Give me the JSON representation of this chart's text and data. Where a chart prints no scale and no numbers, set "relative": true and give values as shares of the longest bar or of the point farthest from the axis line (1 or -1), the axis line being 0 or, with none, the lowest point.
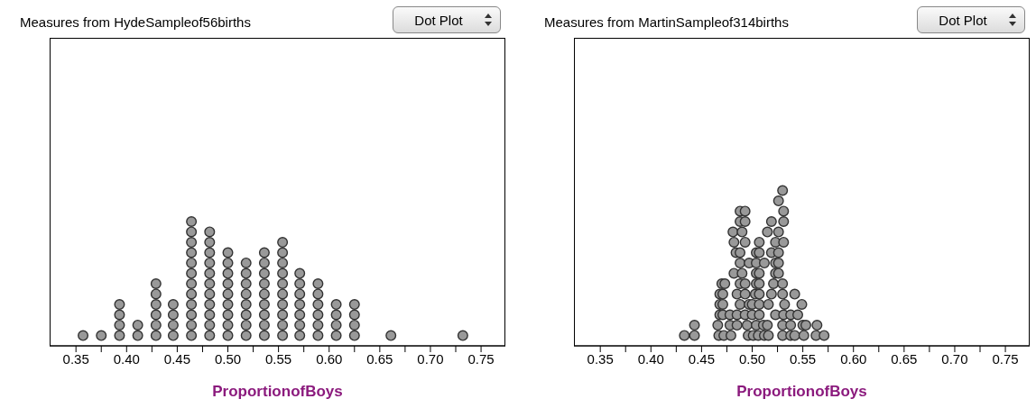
{
  "chart_data": [
    {
      "type": "scatter",
      "title": "Measures from HydeSampleof56births",
      "xlabel": "ProportionofBoys",
      "annotations": [
        "Dot Plot"
      ],
      "relative": true,
      "marker": "circle",
      "color": "#999999",
      "xlim": [
        0.324,
        0.774
      ],
      "xticks": [
        0.35,
        {
          "value": 0.375,
          "label": null
        },
        "0.40",
        {
          "value": 0.425,
          "label": null
        },
        0.45,
        {
          "value": 0.475,
          "label": null
        },
        "0.50",
        {
          "value": 0.525,
          "label": null
        },
        0.55,
        {
          "value": 0.575,
          "label": null
        },
        "0.60",
        {
          "value": 0.625,
          "label": null
        },
        0.65,
        {
          "value": 0.675,
          "label": null
        },
        "0.70",
        {
          "value": 0.725,
          "label": null
        },
        0.75
      ],
      "x": [
        0.357,
        0.375,
        0.393,
        0.393,
        0.393,
        0.393,
        0.411,
        0.411,
        0.429,
        0.429,
        0.429,
        0.429,
        0.429,
        0.429,
        0.446,
        0.446,
        0.446,
        0.446,
        0.464,
        0.464,
        0.464,
        0.464,
        0.464,
        0.464,
        0.464,
        0.464,
        0.464,
        0.464,
        0.464,
        0.464,
        0.482,
        0.482,
        0.482,
        0.482,
        0.482,
        0.482,
        0.482,
        0.482,
        0.482,
        0.482,
        0.482,
        0.5,
        0.5,
        0.5,
        0.5,
        0.5,
        0.5,
        0.5,
        0.5,
        0.5,
        0.518,
        0.518,
        0.518,
        0.518,
        0.518,
        0.518,
        0.518,
        0.518,
        0.536,
        0.536,
        0.536,
        0.536,
        0.536,
        0.536,
        0.536,
        0.536,
        0.536,
        0.554,
        0.554,
        0.554,
        0.554,
        0.554,
        0.554,
        0.554,
        0.554,
        0.554,
        0.554,
        0.571,
        0.571,
        0.571,
        0.571,
        0.571,
        0.571,
        0.571,
        0.589,
        0.589,
        0.589,
        0.589,
        0.589,
        0.589,
        0.607,
        0.607,
        0.607,
        0.607,
        0.625,
        0.625,
        0.625,
        0.625,
        0.661,
        0.732
      ],
      "values": [
        0.083,
        0.083,
        0.083,
        0.167,
        0.25,
        0.333,
        0.083,
        0.167,
        0.083,
        0.167,
        0.25,
        0.333,
        0.417,
        0.5,
        0.083,
        0.167,
        0.25,
        0.333,
        0.083,
        0.167,
        0.25,
        0.333,
        0.417,
        0.5,
        0.583,
        0.667,
        0.75,
        0.833,
        0.917,
        1,
        0.083,
        0.167,
        0.25,
        0.333,
        0.417,
        0.5,
        0.583,
        0.667,
        0.75,
        0.833,
        0.917,
        0.083,
        0.167,
        0.25,
        0.333,
        0.417,
        0.5,
        0.583,
        0.667,
        0.75,
        0.083,
        0.167,
        0.25,
        0.333,
        0.417,
        0.5,
        0.583,
        0.667,
        0.083,
        0.167,
        0.25,
        0.333,
        0.417,
        0.5,
        0.583,
        0.667,
        0.75,
        0.083,
        0.167,
        0.25,
        0.333,
        0.417,
        0.5,
        0.583,
        0.667,
        0.75,
        0.833,
        0.083,
        0.167,
        0.25,
        0.333,
        0.417,
        0.5,
        0.583,
        0.083,
        0.167,
        0.25,
        0.333,
        0.417,
        0.5,
        0.083,
        0.167,
        0.25,
        0.333,
        0.083,
        0.167,
        0.25,
        0.333,
        0.083,
        0.083
      ]
    },
    {
      "type": "scatter",
      "title": "Measures from MartinSampleof314births",
      "xlabel": "ProportionofBoys",
      "annotations": [
        "Dot Plot"
      ],
      "relative": true,
      "marker": "circle",
      "color": "#999999",
      "xlim": [
        0.324,
        0.774
      ],
      "xticks": [
        0.35,
        {
          "value": 0.375,
          "label": null
        },
        "0.40",
        {
          "value": 0.425,
          "label": null
        },
        0.45,
        {
          "value": 0.475,
          "label": null
        },
        "0.50",
        {
          "value": 0.525,
          "label": null
        },
        0.55,
        {
          "value": 0.575,
          "label": null
        },
        "0.60",
        {
          "value": 0.625,
          "label": null
        },
        0.65,
        {
          "value": 0.675,
          "label": null
        },
        "0.70",
        {
          "value": 0.725,
          "label": null
        },
        0.75
      ],
      "x": [
        0.433,
        0.443,
        0.467,
        0.472,
        0.479,
        0.496,
        0.501,
        0.506,
        0.512,
        0.516,
        0.53,
        0.538,
        0.542,
        0.551,
        0.563,
        0.571,
        0.443,
        0.466,
        0.478,
        0.485,
        0.495,
        0.504,
        0.511,
        0.515,
        0.53,
        0.538,
        0.55,
        0.553,
        0.564,
        0.468,
        0.471,
        0.478,
        0.485,
        0.493,
        0.5,
        0.507,
        0.523,
        0.531,
        0.538,
        0.545,
        0.468,
        0.471,
        0.488,
        0.497,
        0.5,
        0.507,
        0.516,
        0.532,
        0.549,
        0.468,
        0.471,
        0.485,
        0.493,
        0.503,
        0.507,
        0.519,
        0.53,
        0.542,
        0.47,
        0.473,
        0.488,
        0.493,
        0.504,
        0.507,
        0.521,
        0.53,
        0.482,
        0.49,
        0.504,
        0.507,
        0.523,
        0.526,
        0.488,
        0.497,
        0.504,
        0.512,
        0.523,
        0.526,
        0.484,
        0.488,
        0.504,
        0.507,
        0.519,
        0.526,
        0.482,
        0.493,
        0.507,
        0.523,
        0.531,
        0.481,
        0.49,
        0.515,
        0.526,
        0.488,
        0.493,
        0.519,
        0.531,
        0.488,
        0.493,
        0.531,
        0.526,
        0.53
      ],
      "values": [
        0.067,
        0.067,
        0.067,
        0.067,
        0.067,
        0.067,
        0.067,
        0.067,
        0.067,
        0.067,
        0.067,
        0.067,
        0.067,
        0.067,
        0.067,
        0.067,
        0.133,
        0.133,
        0.133,
        0.133,
        0.133,
        0.133,
        0.133,
        0.133,
        0.133,
        0.133,
        0.133,
        0.133,
        0.133,
        0.2,
        0.2,
        0.2,
        0.2,
        0.2,
        0.2,
        0.2,
        0.2,
        0.2,
        0.2,
        0.2,
        0.267,
        0.267,
        0.267,
        0.267,
        0.267,
        0.267,
        0.267,
        0.267,
        0.267,
        0.333,
        0.333,
        0.333,
        0.333,
        0.333,
        0.333,
        0.333,
        0.333,
        0.333,
        0.4,
        0.4,
        0.4,
        0.4,
        0.4,
        0.4,
        0.4,
        0.4,
        0.467,
        0.467,
        0.467,
        0.467,
        0.467,
        0.467,
        0.533,
        0.533,
        0.533,
        0.533,
        0.533,
        0.533,
        0.6,
        0.6,
        0.6,
        0.6,
        0.6,
        0.6,
        0.667,
        0.667,
        0.667,
        0.667,
        0.667,
        0.733,
        0.733,
        0.733,
        0.733,
        0.8,
        0.8,
        0.8,
        0.8,
        0.867,
        0.867,
        0.867,
        0.933,
        1
      ]
    }
  ]
}
